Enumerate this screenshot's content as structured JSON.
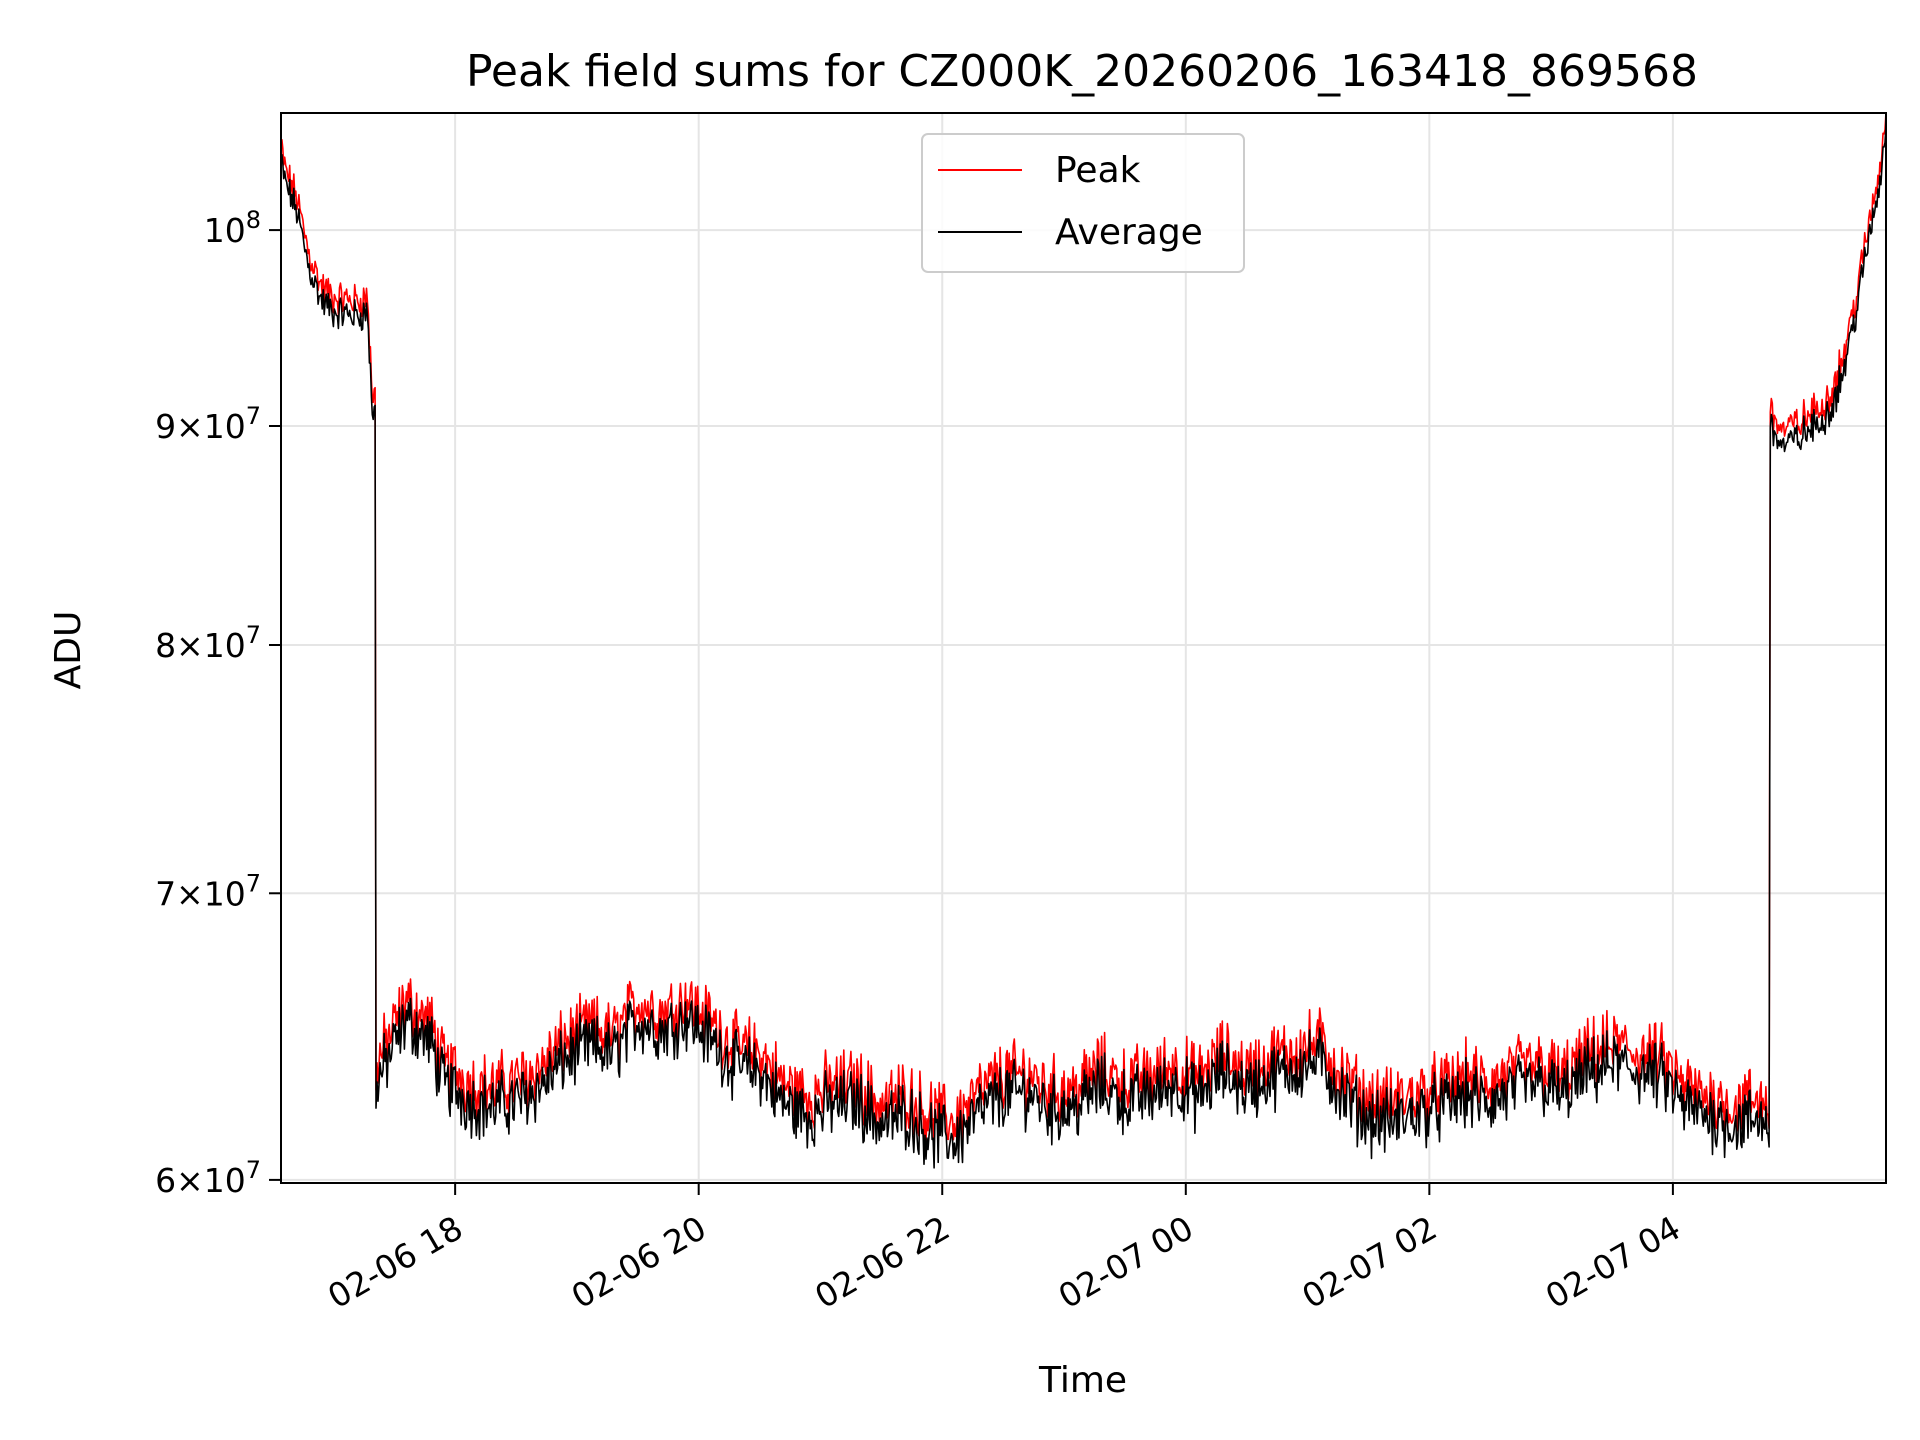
{
  "chart_data": {
    "type": "line",
    "title": "Peak field sums for CZ000K_20260206_163418_869568",
    "xlabel": "Time",
    "ylabel": "ADU",
    "yscale": "log",
    "ylim": [
      59900000,
      106500000
    ],
    "xlim_hours": [
      16.57,
      5.75
    ],
    "grid": true,
    "legend_position": "upper center",
    "y_ticks": [
      {
        "value": 60000000,
        "mantissa": "6",
        "base": "10",
        "exp": "7"
      },
      {
        "value": 70000000,
        "mantissa": "7",
        "base": "10",
        "exp": "7"
      },
      {
        "value": 80000000,
        "mantissa": "8",
        "base": "10",
        "exp": "7"
      },
      {
        "value": 90000000,
        "mantissa": "9",
        "base": "10",
        "exp": "7"
      },
      {
        "value": 100000000,
        "mantissa": "",
        "base": "10",
        "exp": "8"
      }
    ],
    "x_ticks": [
      {
        "t": 18.0,
        "label": "02-06 18"
      },
      {
        "t": 20.0,
        "label": "02-06 20"
      },
      {
        "t": 22.0,
        "label": "02-06 22"
      },
      {
        "t": 24.0,
        "label": "02-07 00"
      },
      {
        "t": 26.0,
        "label": "02-07 02"
      },
      {
        "t": 28.0,
        "label": "02-07 04"
      }
    ],
    "series": [
      {
        "name": "Peak",
        "color": "#ff0000",
        "x_hours": [
          16.57,
          16.6,
          16.7,
          16.8,
          16.9,
          17.0,
          17.1,
          17.2,
          17.28,
          17.32,
          17.35,
          17.4,
          17.5,
          17.6,
          17.7,
          17.8,
          17.9,
          18.0,
          18.1,
          18.3,
          18.5,
          18.7,
          18.9,
          19.1,
          19.3,
          19.5,
          19.7,
          19.9,
          20.1,
          20.3,
          20.5,
          20.7,
          20.9,
          21.1,
          21.3,
          21.5,
          21.7,
          21.9,
          22.1,
          22.3,
          22.5,
          22.7,
          22.9,
          23.1,
          23.3,
          23.5,
          23.7,
          23.9,
          24.1,
          24.3,
          24.5,
          24.7,
          24.9,
          25.1,
          25.3,
          25.5,
          25.7,
          25.9,
          26.1,
          26.3,
          26.5,
          26.7,
          26.9,
          27.1,
          27.3,
          27.5,
          27.7,
          27.9,
          28.1,
          28.3,
          28.5,
          28.7,
          28.78,
          28.8,
          28.9,
          29.0,
          29.1,
          29.2,
          29.3,
          29.4,
          29.5,
          29.6,
          29.7,
          29.75
        ],
        "values": [
          104500000,
          103200000,
          101500000,
          98500000,
          96800000,
          96200000,
          96100000,
          96000000,
          96200000,
          91200000,
          63500000,
          64000000,
          64900000,
          65800000,
          65400000,
          65000000,
          63600000,
          63400000,
          63000000,
          62800000,
          63000000,
          63500000,
          64400000,
          64900000,
          64600000,
          65800000,
          65400000,
          65900000,
          65100000,
          64200000,
          64000000,
          62900000,
          62500000,
          62900000,
          63000000,
          62200000,
          62600000,
          61900000,
          61700000,
          62600000,
          63200000,
          63300000,
          62700000,
          62800000,
          63500000,
          63000000,
          63200000,
          63600000,
          63100000,
          64000000,
          63400000,
          63800000,
          64100000,
          64400000,
          63100000,
          62400000,
          62300000,
          62600000,
          62800000,
          63200000,
          62900000,
          63400000,
          63600000,
          63200000,
          63900000,
          64300000,
          64000000,
          63800000,
          62800000,
          62500000,
          62200000,
          62400000,
          62300000,
          90500000,
          89500000,
          89800000,
          90200000,
          90600000,
          91400000,
          93200000,
          96100000,
          99700000,
          103100000,
          106300000
        ]
      },
      {
        "name": "Average",
        "color": "#000000",
        "x_hours": [
          16.57,
          16.6,
          16.7,
          16.8,
          16.9,
          17.0,
          17.1,
          17.2,
          17.28,
          17.32,
          17.35,
          17.4,
          17.5,
          17.6,
          17.7,
          17.8,
          17.9,
          18.0,
          18.1,
          18.3,
          18.5,
          18.7,
          18.9,
          19.1,
          19.3,
          19.5,
          19.7,
          19.9,
          20.1,
          20.3,
          20.5,
          20.7,
          20.9,
          21.1,
          21.3,
          21.5,
          21.7,
          21.9,
          22.1,
          22.3,
          22.5,
          22.7,
          22.9,
          23.1,
          23.3,
          23.5,
          23.7,
          23.9,
          24.1,
          24.3,
          24.5,
          24.7,
          24.9,
          25.1,
          25.3,
          25.5,
          25.7,
          25.9,
          26.1,
          26.3,
          26.5,
          26.7,
          26.9,
          27.1,
          27.3,
          27.5,
          27.7,
          27.9,
          28.1,
          28.3,
          28.5,
          28.7,
          28.78,
          28.8,
          28.9,
          29.0,
          29.1,
          29.2,
          29.3,
          29.4,
          29.5,
          29.6,
          29.7,
          29.75
        ],
        "values": [
          103900000,
          102700000,
          101000000,
          98000000,
          96300000,
          95700000,
          95600000,
          95500000,
          95700000,
          90600000,
          63100000,
          63600000,
          64500000,
          65400000,
          65000000,
          64600000,
          63200000,
          63000000,
          62600000,
          62400000,
          62600000,
          63100000,
          64000000,
          64500000,
          64200000,
          65400000,
          65000000,
          65500000,
          64700000,
          63800000,
          63600000,
          62500000,
          62100000,
          62500000,
          62600000,
          61800000,
          62200000,
          61500000,
          61300000,
          62200000,
          62800000,
          62900000,
          62300000,
          62400000,
          63100000,
          62600000,
          62800000,
          63200000,
          62700000,
          63600000,
          63000000,
          63400000,
          63700000,
          64000000,
          62700000,
          62000000,
          61900000,
          62200000,
          62400000,
          62800000,
          62500000,
          63000000,
          63200000,
          62800000,
          63500000,
          63900000,
          63600000,
          63400000,
          62400000,
          62100000,
          61800000,
          62000000,
          61900000,
          90000000,
          89000000,
          89300000,
          89700000,
          90100000,
          90900000,
          92700000,
          95600000,
          99200000,
          102600000,
          105800000
        ]
      }
    ]
  }
}
